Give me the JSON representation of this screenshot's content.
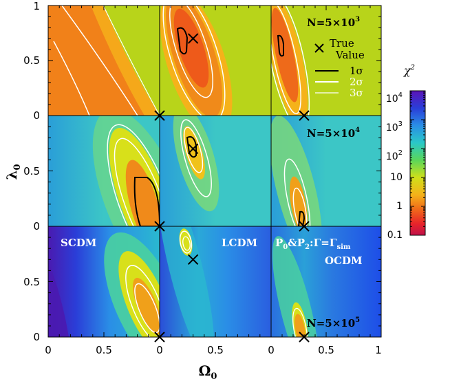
{
  "chart_data": {
    "type": "heatmap",
    "layout": "3x3 grid of chi-squared contour panels",
    "xlabel": "Ω",
    "xlabel_sub": "0",
    "ylabel": "λ",
    "ylabel_sub": "0",
    "xlim": [
      0,
      1
    ],
    "ylim": [
      0,
      1
    ],
    "panel_xticks": [
      "0",
      "0.5",
      "1"
    ],
    "panel_yticks": [
      "0",
      "0.5",
      "1"
    ],
    "colorbar": {
      "label": "χ",
      "label_sup": "2",
      "scale": "log",
      "range": [
        0.1,
        10000
      ],
      "ticks": [
        {
          "base": "10",
          "sup": "4"
        },
        {
          "base": "10",
          "sup": "3"
        },
        {
          "base": "10",
          "sup": "2"
        },
        {
          "base": "10",
          "sup": ""
        },
        {
          "base": "1",
          "sup": ""
        },
        {
          "base": "0.1",
          "sup": ""
        }
      ]
    },
    "rows": [
      {
        "label": "N=5×10",
        "label_sup": "3",
        "background": "#b8d41a"
      },
      {
        "label": "N=5×10",
        "label_sup": "4",
        "background": "#3cc6c6"
      },
      {
        "label": "N=5×10",
        "label_sup": "5",
        "background": "#1f6de0"
      }
    ],
    "columns": [
      {
        "model": "SCDM",
        "true_value": {
          "omega": 1.0,
          "lambda": 0.0
        }
      },
      {
        "model": "LCDM",
        "true_value": {
          "omega": 0.3,
          "lambda": 0.7
        }
      },
      {
        "model": "OCDM",
        "true_value": {
          "omega": 0.3,
          "lambda": 0.0
        }
      }
    ],
    "bottom_right_annotation": {
      "p0": "P",
      "p0_sub": "0",
      "amp": "&P",
      "p2_sub": "2",
      "gamma": ":Γ=Γ",
      "gamma_sub": "sim"
    },
    "legend": {
      "marker_label_1": "True",
      "marker_label_2": "Value",
      "entries": [
        {
          "label": "1σ",
          "color": "#000000"
        },
        {
          "label": "2σ",
          "color": "#ffffff"
        },
        {
          "label": "3σ",
          "color": "#ffffff"
        }
      ]
    }
  }
}
